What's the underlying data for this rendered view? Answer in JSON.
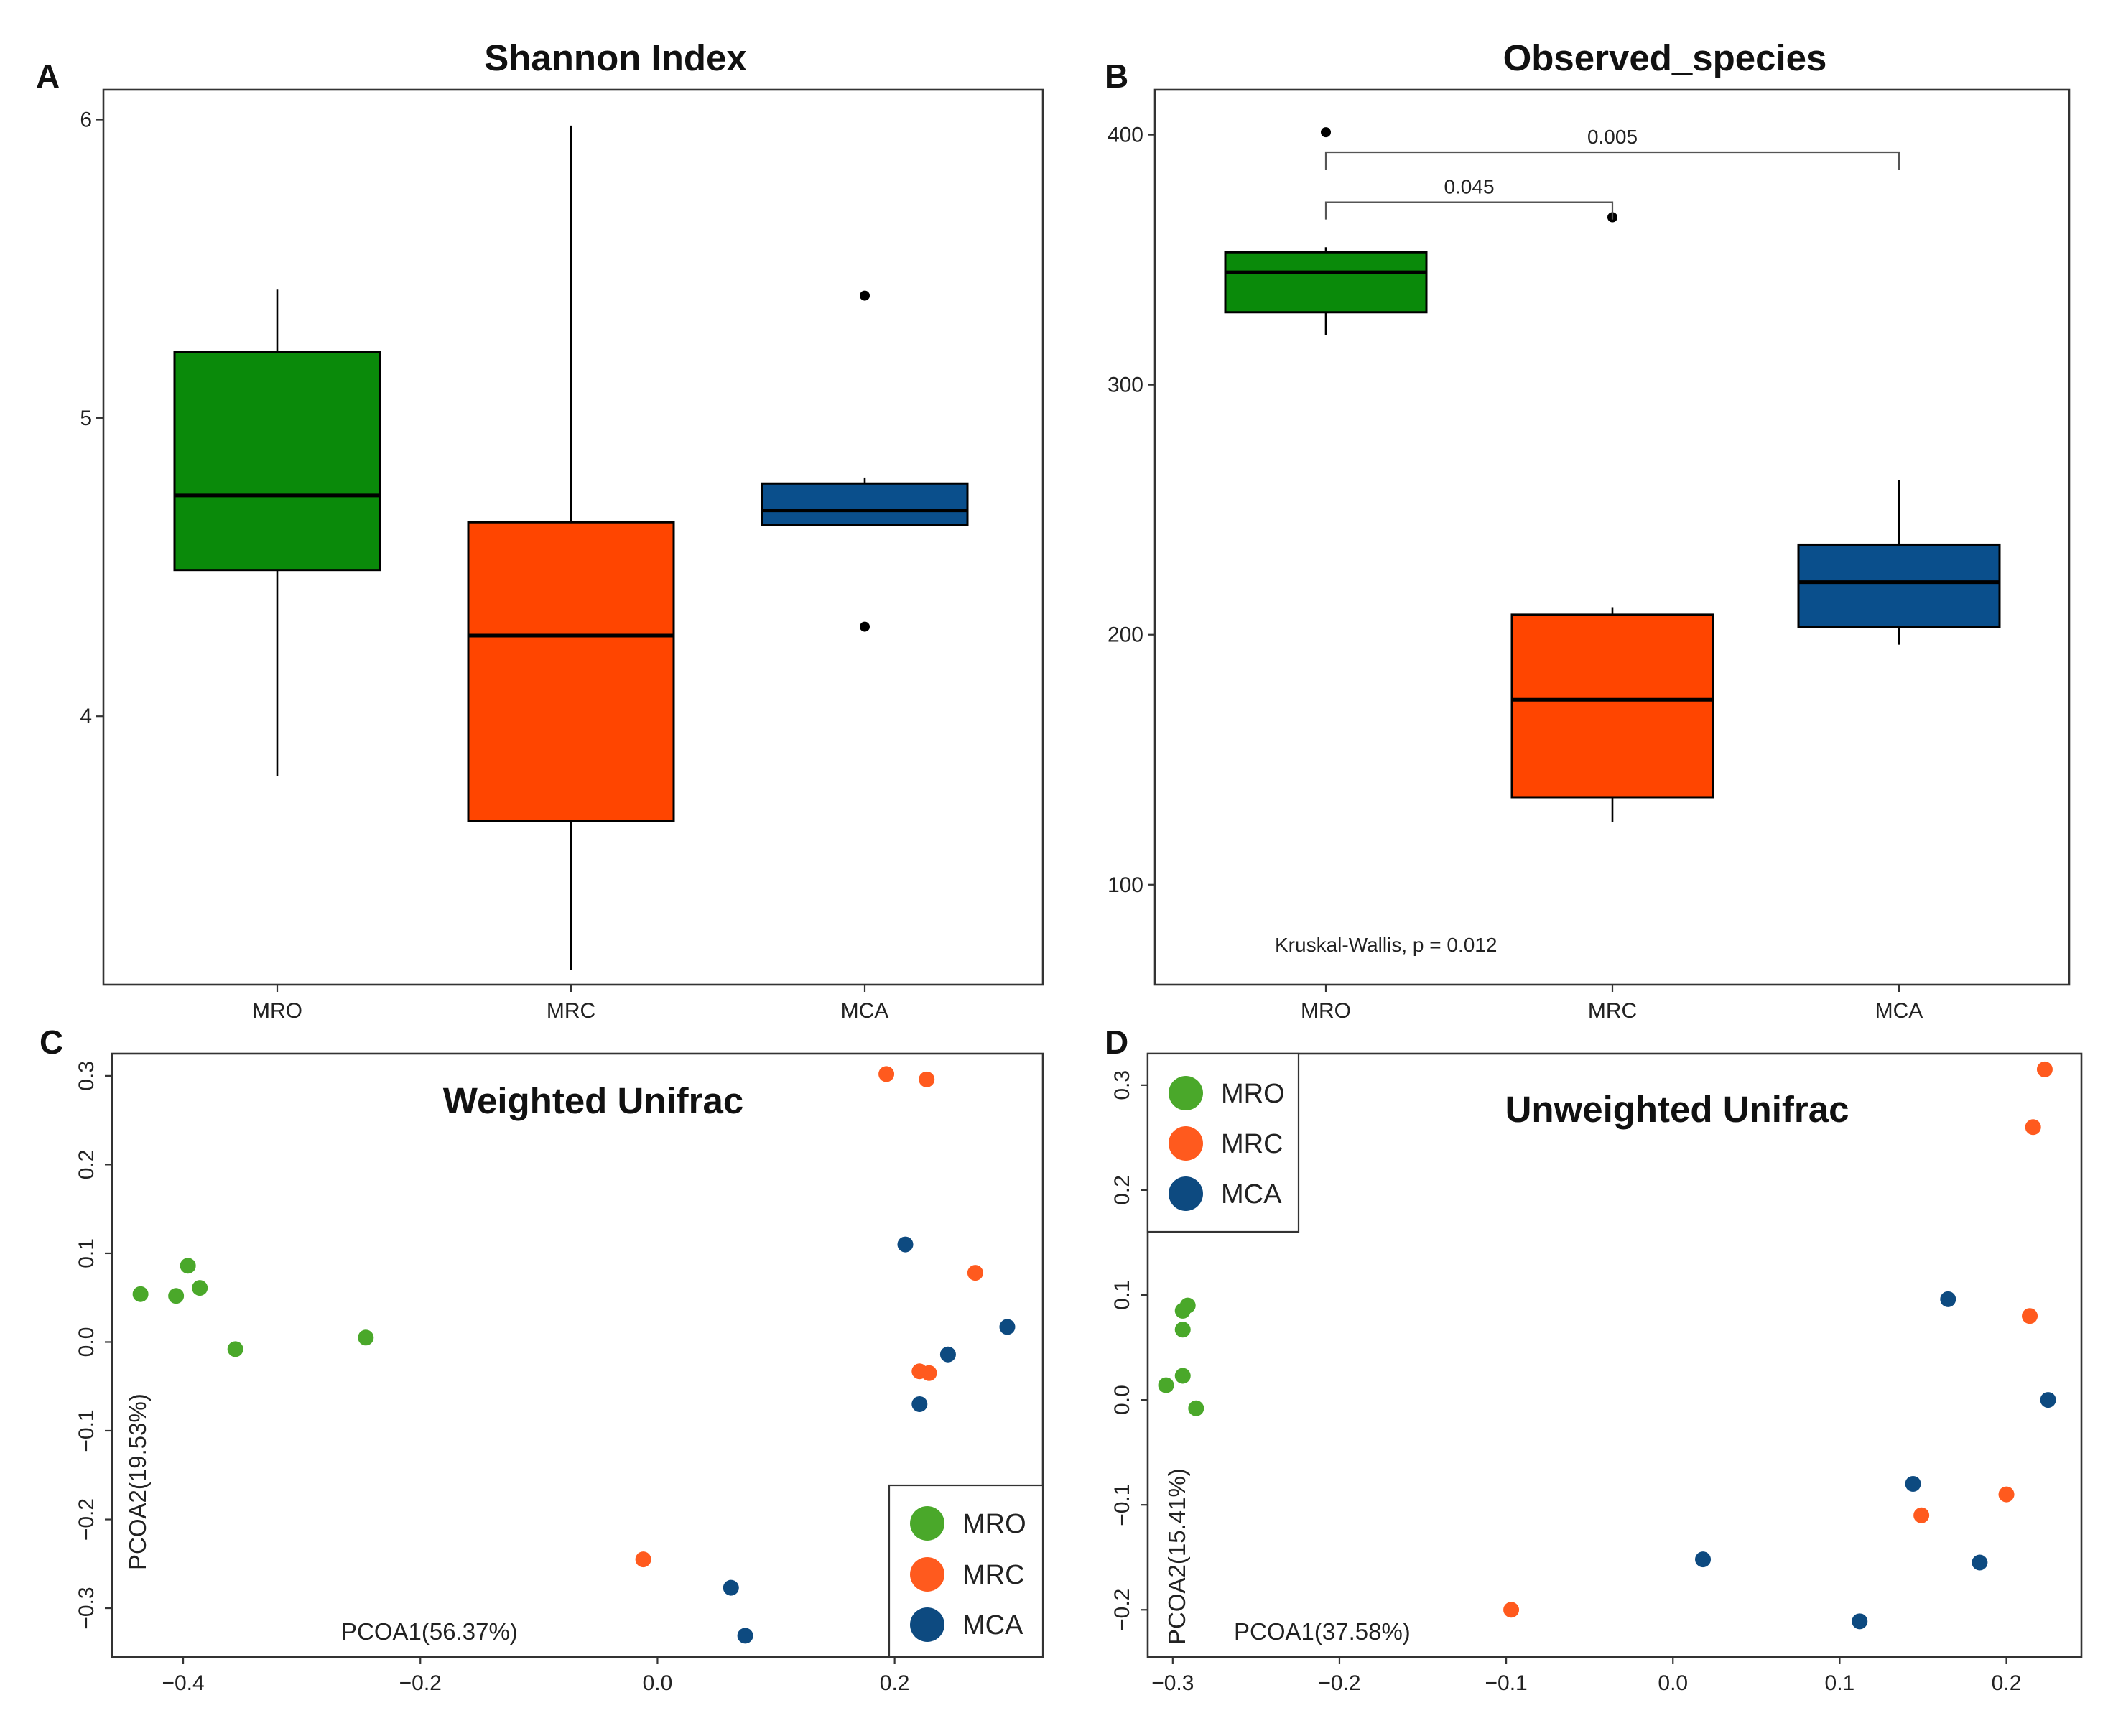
{
  "colors": {
    "MRO": "#0a8a0a",
    "MRC": "#ff4500",
    "MCA": "#0a4f8c",
    "MRO_point": "#4aa82a",
    "MRC_point": "#ff5a1e",
    "MCA_point": "#0d4a80"
  },
  "chart_data": [
    {
      "id": "A",
      "letter": "A",
      "type": "box",
      "title": "Shannon Index",
      "categories": [
        "MRO",
        "MRC",
        "MCA"
      ],
      "yticks": [
        "4",
        "5",
        "6"
      ],
      "ylim": [
        3.1,
        6.1
      ],
      "boxes": [
        {
          "group": "MRO",
          "whisker_low": 3.8,
          "q1": 4.49,
          "median": 4.74,
          "q3": 5.22,
          "whisker_high": 5.43,
          "outliers": []
        },
        {
          "group": "MRC",
          "whisker_low": 3.15,
          "q1": 3.65,
          "median": 4.27,
          "q3": 4.65,
          "whisker_high": 5.98,
          "outliers": []
        },
        {
          "group": "MCA",
          "whisker_low": 4.64,
          "q1": 4.64,
          "median": 4.69,
          "q3": 4.78,
          "whisker_high": 4.8,
          "outliers": [
            5.41,
            4.3
          ]
        }
      ]
    },
    {
      "id": "B",
      "letter": "B",
      "type": "box",
      "title": "Observed_species",
      "categories": [
        "MRO",
        "MRC",
        "MCA"
      ],
      "yticks": [
        "100",
        "200",
        "300",
        "400"
      ],
      "ylim": [
        60,
        418
      ],
      "boxes": [
        {
          "group": "MRO",
          "whisker_low": 320,
          "q1": 329,
          "median": 345,
          "q3": 353,
          "whisker_high": 355,
          "outliers": [
            401
          ]
        },
        {
          "group": "MRC",
          "whisker_low": 125,
          "q1": 135,
          "median": 174,
          "q3": 208,
          "whisker_high": 211,
          "outliers": [
            367
          ]
        },
        {
          "group": "MCA",
          "whisker_low": 196,
          "q1": 203,
          "median": 221,
          "q3": 236,
          "whisker_high": 262,
          "outliers": []
        }
      ],
      "comparisons": [
        {
          "from": "MRO",
          "to": "MCA",
          "label": "0.005",
          "y": 393
        },
        {
          "from": "MRO",
          "to": "MRC",
          "label": "0.045",
          "y": 373
        }
      ],
      "test_label": "Kruskal-Wallis, p = 0.012"
    },
    {
      "id": "C",
      "letter": "C",
      "type": "scatter",
      "title": "Weighted Unifrac",
      "xlabel": "PCOA1(56.37%)",
      "ylabel": "PCOA2(19.53%)",
      "xlim": [
        -0.46,
        0.325
      ],
      "ylim": [
        -0.355,
        0.325
      ],
      "xticks": [
        -0.4,
        -0.2,
        0.0,
        0.2
      ],
      "xtick_labels": [
        "−0.4",
        "−0.2",
        "0.0",
        "0.2"
      ],
      "yticks": [
        -0.3,
        -0.2,
        -0.1,
        0.0,
        0.1,
        0.2,
        0.3
      ],
      "ytick_labels": [
        "−0.3",
        "−0.2",
        "−0.1",
        "0.0",
        "0.1",
        "0.2",
        "0.3"
      ],
      "legend_position": "bottom-right",
      "legend": [
        "MRO",
        "MRC",
        "MCA"
      ],
      "series": [
        {
          "name": "MRO",
          "points": [
            [
              -0.436,
              0.054
            ],
            [
              -0.406,
              0.052
            ],
            [
              -0.396,
              0.086
            ],
            [
              -0.386,
              0.061
            ],
            [
              -0.356,
              -0.008
            ],
            [
              -0.246,
              0.005
            ]
          ]
        },
        {
          "name": "MRC",
          "points": [
            [
              0.193,
              0.302
            ],
            [
              0.227,
              0.296
            ],
            [
              0.268,
              0.078
            ],
            [
              0.221,
              -0.033
            ],
            [
              0.229,
              -0.035
            ],
            [
              -0.012,
              -0.245
            ]
          ]
        },
        {
          "name": "MCA",
          "points": [
            [
              0.209,
              0.11
            ],
            [
              0.295,
              0.017
            ],
            [
              0.245,
              -0.014
            ],
            [
              0.221,
              -0.07
            ],
            [
              0.062,
              -0.277
            ],
            [
              0.074,
              -0.331
            ]
          ]
        }
      ]
    },
    {
      "id": "D",
      "letter": "D",
      "type": "scatter",
      "title": "Unweighted Unifrac",
      "xlabel": "PCOA1(37.58%)",
      "ylabel": "PCOA2(15.41%)",
      "xlim": [
        -0.315,
        0.245
      ],
      "ylim": [
        -0.245,
        0.33
      ],
      "xticks": [
        -0.3,
        -0.2,
        -0.1,
        0.0,
        0.1,
        0.2
      ],
      "xtick_labels": [
        "−0.3",
        "−0.2",
        "−0.1",
        "0.0",
        "0.1",
        "0.2"
      ],
      "yticks": [
        -0.2,
        -0.1,
        0.0,
        0.1,
        0.2,
        0.3
      ],
      "ytick_labels": [
        "−0.2",
        "−0.1",
        "0.0",
        "0.1",
        "0.2",
        "0.3"
      ],
      "legend_position": "top-left",
      "legend": [
        "MRO",
        "MRC",
        "MCA"
      ],
      "series": [
        {
          "name": "MRO",
          "points": [
            [
              -0.291,
              0.09
            ],
            [
              -0.294,
              0.085
            ],
            [
              -0.294,
              0.067
            ],
            [
              -0.294,
              0.023
            ],
            [
              -0.304,
              0.014
            ],
            [
              -0.286,
              -0.008
            ]
          ]
        },
        {
          "name": "MRC",
          "points": [
            [
              0.223,
              0.315
            ],
            [
              0.216,
              0.26
            ],
            [
              0.214,
              0.08
            ],
            [
              0.2,
              -0.09
            ],
            [
              0.149,
              -0.11
            ],
            [
              -0.097,
              -0.2
            ]
          ]
        },
        {
          "name": "MCA",
          "points": [
            [
              0.165,
              0.096
            ],
            [
              0.225,
              0.0
            ],
            [
              0.144,
              -0.08
            ],
            [
              0.184,
              -0.155
            ],
            [
              0.018,
              -0.152
            ],
            [
              0.112,
              -0.211
            ]
          ]
        }
      ]
    }
  ]
}
